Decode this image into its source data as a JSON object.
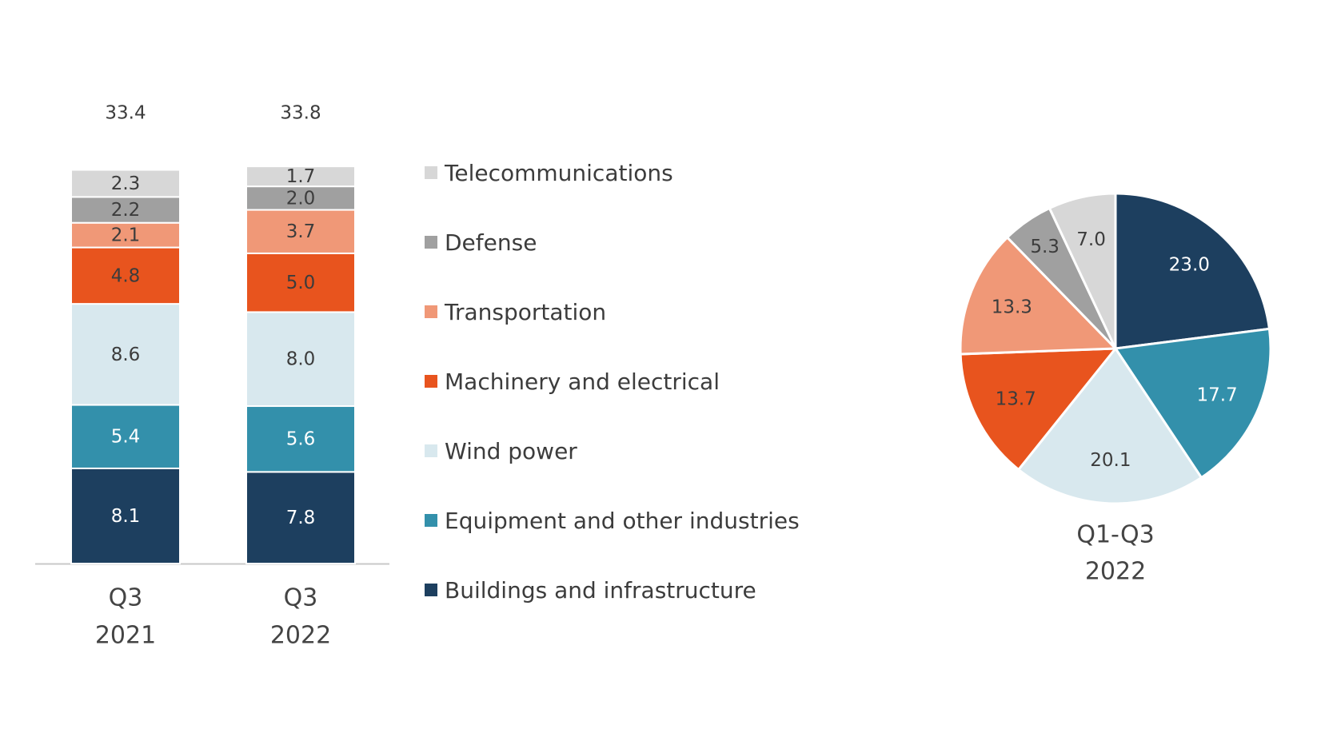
{
  "chart_data": [
    {
      "type": "bar",
      "stacked": true,
      "categories": [
        {
          "line1": "Q3",
          "line2": "2021"
        },
        {
          "line1": "Q3",
          "line2": "2022"
        }
      ],
      "totals": [
        "33.4",
        "33.8"
      ],
      "series": [
        {
          "name": "Buildings and infrastructure",
          "color": "#1d3f5f",
          "label_color": "#ffffff",
          "values": [
            8.1,
            7.8
          ]
        },
        {
          "name": "Equipment and other industries",
          "color": "#3390ab",
          "label_color": "#ffffff",
          "values": [
            5.4,
            5.6
          ]
        },
        {
          "name": "Wind power",
          "color": "#d8e8ee",
          "label_color": "#3c3c3c",
          "values": [
            8.6,
            8.0
          ]
        },
        {
          "name": "Machinery and electrical",
          "color": "#e8541e",
          "label_color": "#3c3c3c",
          "values": [
            4.8,
            5.0
          ]
        },
        {
          "name": "Transportation",
          "color": "#f09877",
          "label_color": "#3c3c3c",
          "values": [
            2.1,
            3.7
          ]
        },
        {
          "name": "Defense",
          "color": "#a0a0a0",
          "label_color": "#3c3c3c",
          "values": [
            2.2,
            2.0
          ]
        },
        {
          "name": "Telecommunications",
          "color": "#d7d7d7",
          "label_color": "#3c3c3c",
          "values": [
            2.3,
            1.7
          ]
        }
      ],
      "grid": false
    },
    {
      "type": "pie",
      "title_line1": "Q1-Q3",
      "title_line2": "2022",
      "slices": [
        {
          "name": "Buildings and infrastructure",
          "value": 23.0,
          "color": "#1d3f5f",
          "label_color": "#ffffff"
        },
        {
          "name": "Equipment and other industries",
          "value": 17.7,
          "color": "#3390ab",
          "label_color": "#ffffff"
        },
        {
          "name": "Wind power",
          "value": 20.1,
          "color": "#d8e8ee",
          "label_color": "#3c3c3c"
        },
        {
          "name": "Machinery and electrical",
          "value": 13.7,
          "color": "#e8541e",
          "label_color": "#3c3c3c"
        },
        {
          "name": "Transportation",
          "value": 13.3,
          "color": "#f09877",
          "label_color": "#3c3c3c"
        },
        {
          "name": "Defense",
          "value": 5.3,
          "color": "#a0a0a0",
          "label_color": "#3c3c3c"
        },
        {
          "name": "Telecommunications",
          "value": 7.0,
          "color": "#d7d7d7",
          "label_color": "#3c3c3c"
        }
      ]
    }
  ],
  "legend": {
    "placement": "center",
    "items": [
      {
        "label": "Telecommunications",
        "color": "#d7d7d7"
      },
      {
        "label": "Defense",
        "color": "#a0a0a0"
      },
      {
        "label": "Transportation",
        "color": "#f09877"
      },
      {
        "label": "Machinery and electrical",
        "color": "#e8541e"
      },
      {
        "label": "Wind power",
        "color": "#d8e8ee"
      },
      {
        "label": "Equipment and other industries",
        "color": "#3390ab"
      },
      {
        "label": "Buildings and infrastructure",
        "color": "#1d3f5f"
      }
    ]
  }
}
